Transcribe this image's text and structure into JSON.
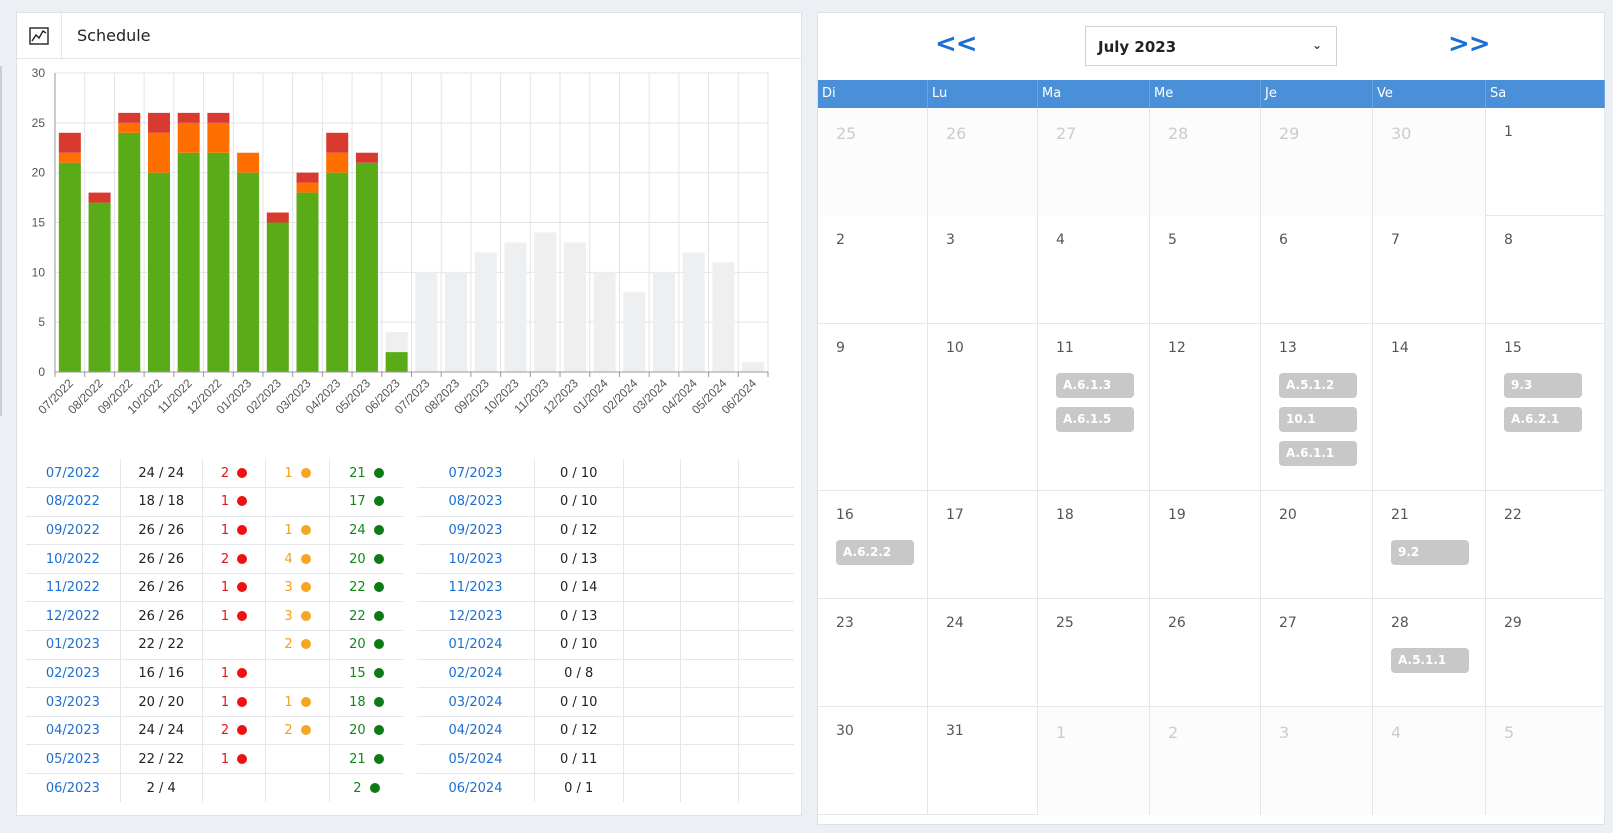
{
  "header": {
    "title": "Schedule",
    "icon": "line-chart-icon"
  },
  "colors": {
    "green": "#5aab18",
    "orange": "#ff6f00",
    "red": "#d93a30",
    "grey": "#eeeff1",
    "link": "#1c6fd1",
    "calendar_head": "#4a90d9",
    "event": "#c8c8c8"
  },
  "chart_data": {
    "type": "bar",
    "stacked": true,
    "categories": [
      "07/2022",
      "08/2022",
      "09/2022",
      "10/2022",
      "11/2022",
      "12/2022",
      "01/2023",
      "02/2023",
      "03/2023",
      "04/2023",
      "05/2023",
      "06/2023",
      "07/2023",
      "08/2023",
      "09/2023",
      "10/2023",
      "11/2023",
      "12/2023",
      "01/2024",
      "02/2024",
      "03/2024",
      "04/2024",
      "05/2024",
      "06/2024"
    ],
    "series": [
      {
        "color": "#5aab18",
        "values": [
          21,
          17,
          24,
          20,
          22,
          22,
          20,
          15,
          18,
          20,
          21,
          2,
          0,
          0,
          0,
          0,
          0,
          0,
          0,
          0,
          0,
          0,
          0,
          0
        ]
      },
      {
        "color": "#ff6f00",
        "values": [
          1,
          0,
          1,
          4,
          3,
          3,
          2,
          0,
          1,
          2,
          0,
          0,
          0,
          0,
          0,
          0,
          0,
          0,
          0,
          0,
          0,
          0,
          0,
          0
        ]
      },
      {
        "color": "#d93a30",
        "values": [
          2,
          1,
          1,
          2,
          1,
          1,
          0,
          1,
          1,
          2,
          1,
          0,
          0,
          0,
          0,
          0,
          0,
          0,
          0,
          0,
          0,
          0,
          0,
          0
        ]
      },
      {
        "color": "#eeeff1",
        "values": [
          0,
          0,
          0,
          0,
          0,
          0,
          0,
          0,
          0,
          0,
          0,
          2,
          10,
          10,
          12,
          13,
          14,
          13,
          10,
          8,
          10,
          12,
          11,
          1
        ]
      }
    ],
    "ylim": [
      0,
      30
    ],
    "yticks": [
      "0",
      "5",
      "10",
      "15",
      "20",
      "25",
      "30"
    ],
    "grid": true
  },
  "table_a": [
    {
      "month": "07/2022",
      "ratio": "24 / 24",
      "red": "2",
      "orange": "1",
      "green": "21"
    },
    {
      "month": "08/2022",
      "ratio": "18 / 18",
      "red": "1",
      "orange": "",
      "green": "17"
    },
    {
      "month": "09/2022",
      "ratio": "26 / 26",
      "red": "1",
      "orange": "1",
      "green": "24"
    },
    {
      "month": "10/2022",
      "ratio": "26 / 26",
      "red": "2",
      "orange": "4",
      "green": "20"
    },
    {
      "month": "11/2022",
      "ratio": "26 / 26",
      "red": "1",
      "orange": "3",
      "green": "22"
    },
    {
      "month": "12/2022",
      "ratio": "26 / 26",
      "red": "1",
      "orange": "3",
      "green": "22"
    },
    {
      "month": "01/2023",
      "ratio": "22 / 22",
      "red": "",
      "orange": "2",
      "green": "20"
    },
    {
      "month": "02/2023",
      "ratio": "16 / 16",
      "red": "1",
      "orange": "",
      "green": "15"
    },
    {
      "month": "03/2023",
      "ratio": "20 / 20",
      "red": "1",
      "orange": "1",
      "green": "18"
    },
    {
      "month": "04/2023",
      "ratio": "24 / 24",
      "red": "2",
      "orange": "2",
      "green": "20"
    },
    {
      "month": "05/2023",
      "ratio": "22 / 22",
      "red": "1",
      "orange": "",
      "green": "21"
    },
    {
      "month": "06/2023",
      "ratio": "2 / 4",
      "red": "",
      "orange": "",
      "green": "2"
    }
  ],
  "table_b": [
    {
      "month": "07/2023",
      "ratio": "0 / 10"
    },
    {
      "month": "08/2023",
      "ratio": "0 / 10"
    },
    {
      "month": "09/2023",
      "ratio": "0 / 12"
    },
    {
      "month": "10/2023",
      "ratio": "0 / 13"
    },
    {
      "month": "11/2023",
      "ratio": "0 / 14"
    },
    {
      "month": "12/2023",
      "ratio": "0 / 13"
    },
    {
      "month": "01/2024",
      "ratio": "0 / 10"
    },
    {
      "month": "02/2024",
      "ratio": "0 / 8"
    },
    {
      "month": "03/2024",
      "ratio": "0 / 10"
    },
    {
      "month": "04/2024",
      "ratio": "0 / 12"
    },
    {
      "month": "05/2024",
      "ratio": "0 / 11"
    },
    {
      "month": "06/2024",
      "ratio": "0 / 1"
    }
  ],
  "calendar": {
    "prev_label": "<<",
    "next_label": ">>",
    "selected_month": "July 2023",
    "day_names": [
      "Di",
      "Lu",
      "Ma",
      "Me",
      "Je",
      "Ve",
      "Sa"
    ],
    "weeks": [
      [
        {
          "day": "25",
          "other": true,
          "events": []
        },
        {
          "day": "26",
          "other": true,
          "events": []
        },
        {
          "day": "27",
          "other": true,
          "events": []
        },
        {
          "day": "28",
          "other": true,
          "events": []
        },
        {
          "day": "29",
          "other": true,
          "events": []
        },
        {
          "day": "30",
          "other": true,
          "events": []
        },
        {
          "day": "1",
          "other": false,
          "events": []
        }
      ],
      [
        {
          "day": "2",
          "other": false,
          "events": []
        },
        {
          "day": "3",
          "other": false,
          "events": []
        },
        {
          "day": "4",
          "other": false,
          "events": []
        },
        {
          "day": "5",
          "other": false,
          "events": []
        },
        {
          "day": "6",
          "other": false,
          "events": []
        },
        {
          "day": "7",
          "other": false,
          "events": []
        },
        {
          "day": "8",
          "other": false,
          "events": []
        }
      ],
      [
        {
          "day": "9",
          "other": false,
          "events": []
        },
        {
          "day": "10",
          "other": false,
          "events": []
        },
        {
          "day": "11",
          "other": false,
          "events": [
            "A.6.1.3",
            "A.6.1.5"
          ]
        },
        {
          "day": "12",
          "other": false,
          "events": []
        },
        {
          "day": "13",
          "other": false,
          "events": [
            "A.5.1.2",
            "10.1",
            "A.6.1.1"
          ]
        },
        {
          "day": "14",
          "other": false,
          "events": []
        },
        {
          "day": "15",
          "other": false,
          "events": [
            "9.3",
            "A.6.2.1"
          ]
        }
      ],
      [
        {
          "day": "16",
          "other": false,
          "events": [
            "A.6.2.2"
          ]
        },
        {
          "day": "17",
          "other": false,
          "events": []
        },
        {
          "day": "18",
          "other": false,
          "events": []
        },
        {
          "day": "19",
          "other": false,
          "events": []
        },
        {
          "day": "20",
          "other": false,
          "events": []
        },
        {
          "day": "21",
          "other": false,
          "events": [
            "9.2"
          ]
        },
        {
          "day": "22",
          "other": false,
          "events": []
        }
      ],
      [
        {
          "day": "23",
          "other": false,
          "events": []
        },
        {
          "day": "24",
          "other": false,
          "events": []
        },
        {
          "day": "25",
          "other": false,
          "events": []
        },
        {
          "day": "26",
          "other": false,
          "events": []
        },
        {
          "day": "27",
          "other": false,
          "events": []
        },
        {
          "day": "28",
          "other": false,
          "events": [
            "A.5.1.1"
          ]
        },
        {
          "day": "29",
          "other": false,
          "events": []
        }
      ],
      [
        {
          "day": "30",
          "other": false,
          "events": []
        },
        {
          "day": "31",
          "other": false,
          "events": []
        },
        {
          "day": "1",
          "other": true,
          "events": []
        },
        {
          "day": "2",
          "other": true,
          "events": []
        },
        {
          "day": "3",
          "other": true,
          "events": []
        },
        {
          "day": "4",
          "other": true,
          "events": []
        },
        {
          "day": "5",
          "other": true,
          "events": []
        }
      ]
    ]
  }
}
